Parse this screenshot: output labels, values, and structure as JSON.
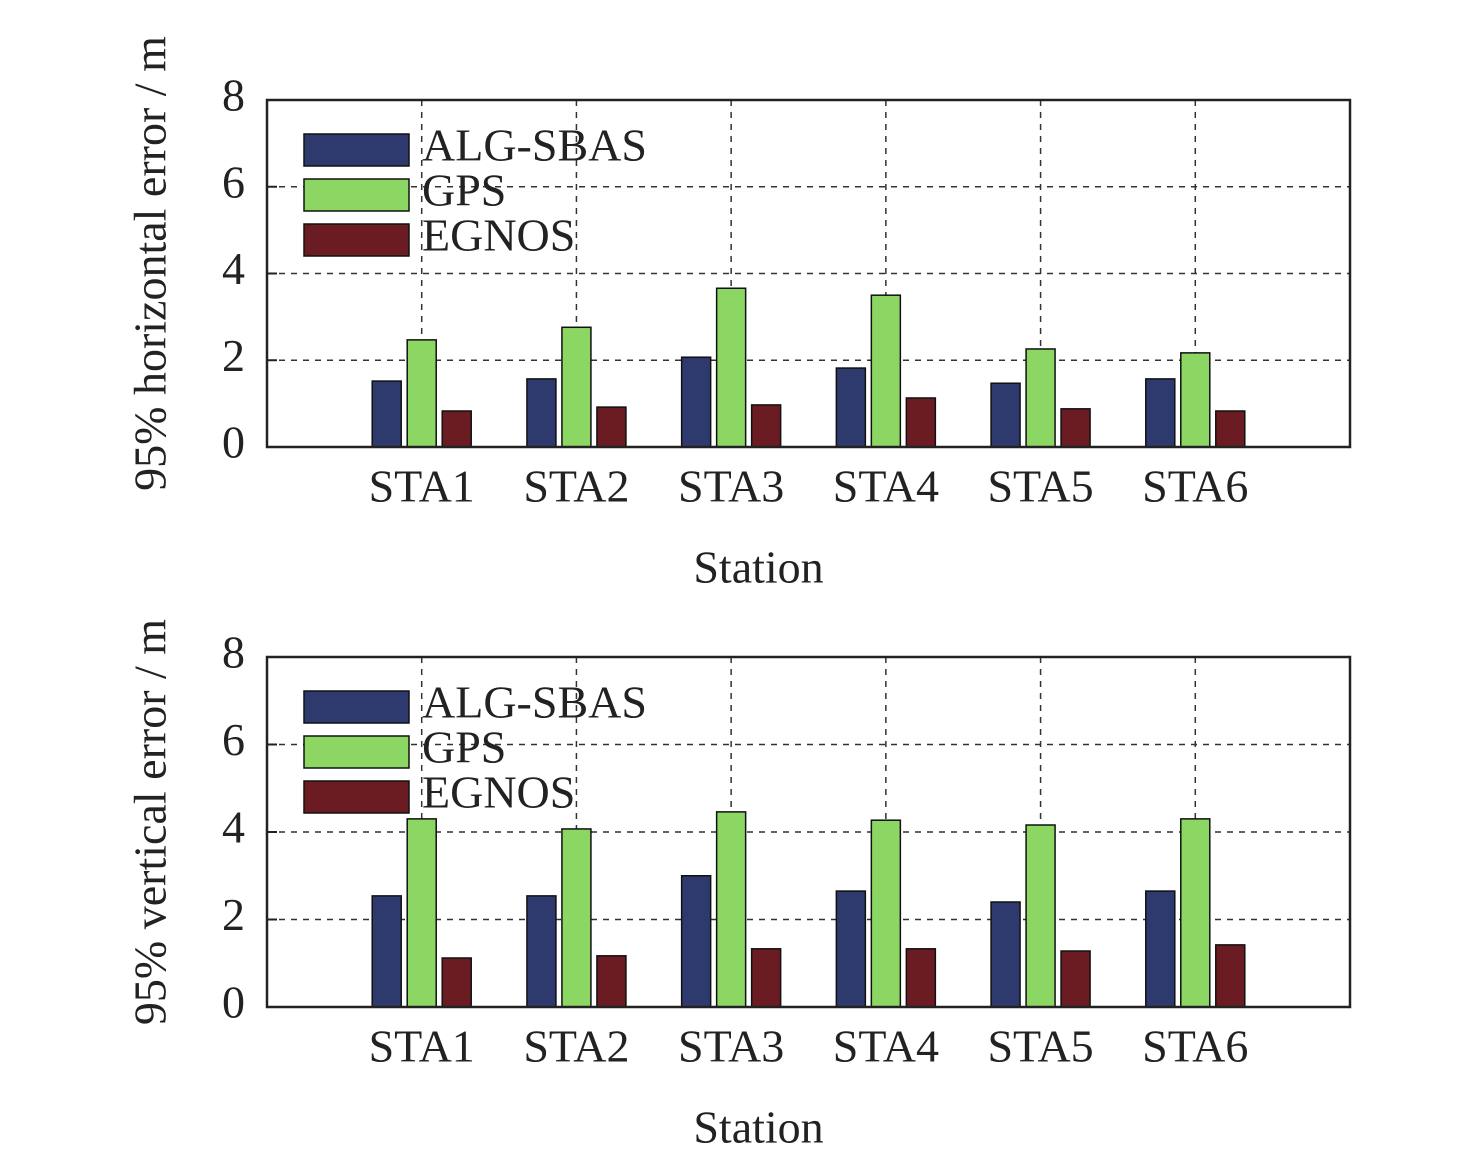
{
  "chart_data": [
    {
      "type": "bar",
      "ylabel": "95% horizontal error / m",
      "xlabel": "Station",
      "categories": [
        "STA1",
        "STA2",
        "STA3",
        "STA4",
        "STA5",
        "STA6"
      ],
      "series": [
        {
          "name": "ALG-SBAS",
          "color": "#2e3a6e",
          "values": [
            1.52,
            1.57,
            2.07,
            1.82,
            1.47,
            1.57
          ]
        },
        {
          "name": "GPS",
          "color": "#8cd664",
          "values": [
            2.47,
            2.76,
            3.66,
            3.5,
            2.26,
            2.17
          ]
        },
        {
          "name": "EGNOS",
          "color": "#6b1c22",
          "values": [
            0.83,
            0.92,
            0.97,
            1.13,
            0.88,
            0.83
          ]
        }
      ],
      "ylim": [
        0,
        8
      ],
      "yticks": [
        0,
        2,
        4,
        6,
        8
      ],
      "grid": true,
      "legend": "upper left"
    },
    {
      "type": "bar",
      "ylabel": "95% vertical error / m",
      "xlabel": "Station",
      "categories": [
        "STA1",
        "STA2",
        "STA3",
        "STA4",
        "STA5",
        "STA6"
      ],
      "series": [
        {
          "name": "ALG-SBAS",
          "color": "#2e3a6e",
          "values": [
            2.54,
            2.54,
            3.0,
            2.65,
            2.4,
            2.65
          ]
        },
        {
          "name": "GPS",
          "color": "#8cd664",
          "values": [
            4.3,
            4.07,
            4.46,
            4.27,
            4.16,
            4.3
          ]
        },
        {
          "name": "EGNOS",
          "color": "#6b1c22",
          "values": [
            1.12,
            1.17,
            1.33,
            1.33,
            1.28,
            1.42
          ]
        }
      ],
      "ylim": [
        0,
        8
      ],
      "yticks": [
        0,
        2,
        4,
        6,
        8
      ],
      "grid": true,
      "legend": "upper left"
    }
  ]
}
